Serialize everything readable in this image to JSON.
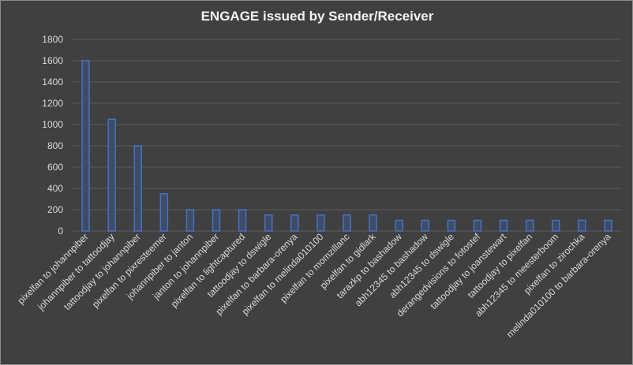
{
  "chart_data": {
    "type": "bar",
    "title": "ENGAGE issued by Sender/Receiver",
    "xlabel": "",
    "ylabel": "",
    "ylim": [
      0,
      1800
    ],
    "yticks": [
      0,
      200,
      400,
      600,
      800,
      1000,
      1200,
      1400,
      1600,
      1800
    ],
    "grid": true,
    "legend": "none",
    "bar_color": "#4472c4",
    "categories": [
      "pixelfan to johannpiber",
      "johannpiber to tattoodjay",
      "tattoodjay to johannpiber",
      "pixelfan to pixresteemer",
      "johannpiber to janton",
      "janton to johannpiber",
      "pixelfan to lightcaptured",
      "tattoodjay to dswigle",
      "pixelfan to barbara-orenya",
      "pixelfan to melinda010100",
      "pixelfan to momzillanc",
      "pixelfan to gidlark",
      "tarazkp to bashadow",
      "abh12345 to bashadow",
      "abh12345 to dswigle",
      "derangedvisions to fotostef",
      "tattoodjay to joanstewart",
      "tattoodjay to pixelfan",
      "abh12345 to meesterboom",
      "pixelfan to zirochka",
      "melinda010100 to barbara-orenya"
    ],
    "values": [
      1600,
      1050,
      800,
      350,
      200,
      200,
      200,
      150,
      150,
      150,
      150,
      150,
      100,
      100,
      100,
      100,
      100,
      100,
      100,
      100,
      100
    ]
  }
}
